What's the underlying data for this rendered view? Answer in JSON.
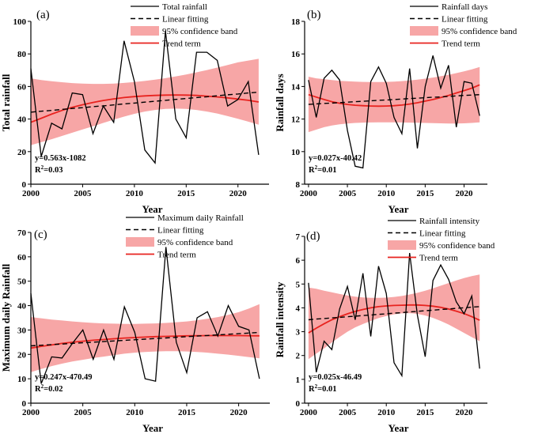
{
  "figure": {
    "colors": {
      "obs": "#000000",
      "trend": "#e8231f",
      "band": "#f7a6a6",
      "fit": "#000000"
    }
  },
  "chart_data": [
    {
      "type": "line",
      "panel_label": "(a)",
      "xlabel": "Year",
      "ylabel": "Total rainfall",
      "xlim": [
        2000,
        2023
      ],
      "ylim": [
        0,
        100
      ],
      "xticks": [
        "2000",
        "2005",
        "2010",
        "2015",
        "2020"
      ],
      "yticks": [
        "0",
        "20",
        "40",
        "60",
        "80",
        "100"
      ],
      "legend": [
        "Total rainfall",
        "Linear fitting",
        "95% confidence band",
        "Trend term"
      ],
      "equation": "y=0.563x-1082",
      "r2_label": "R",
      "r2_value": "=0.03",
      "x": [
        2000,
        2001,
        2002,
        2003,
        2004,
        2005,
        2006,
        2007,
        2008,
        2009,
        2010,
        2011,
        2012,
        2013,
        2014,
        2015,
        2016,
        2017,
        2018,
        2019,
        2020,
        2021,
        2022
      ],
      "series": [
        {
          "name": "Total rainfall",
          "values": [
            71,
            17,
            37.5,
            34,
            56,
            55,
            31,
            48,
            38,
            88,
            63,
            21,
            13,
            94,
            40,
            28.5,
            81,
            81,
            76,
            48,
            52,
            63,
            18
          ]
        },
        {
          "name": "Linear fitting",
          "values": [
            44.2,
            44.8,
            45.3,
            45.9,
            46.5,
            47.0,
            47.6,
            48.1,
            48.7,
            49.3,
            49.8,
            50.4,
            50.9,
            51.5,
            52.1,
            52.6,
            53.2,
            53.7,
            54.3,
            54.9,
            55.4,
            56.0,
            56.5
          ]
        },
        {
          "name": "Trend term",
          "values": [
            38,
            40.5,
            43,
            45.3,
            47.2,
            48.8,
            50.2,
            51.4,
            52.4,
            53.2,
            53.8,
            54.2,
            54.5,
            54.7,
            54.8,
            54.7,
            54.5,
            54.1,
            53.6,
            53.0,
            52.3,
            51.5,
            50.5
          ]
        },
        {
          "name": "95% confidence band upper",
          "values": [
            65,
            64,
            63.2,
            62.6,
            62.1,
            61.8,
            61.6,
            61.6,
            61.8,
            62.2,
            62.7,
            63.4,
            64.2,
            65.1,
            66.2,
            67.4,
            68.7,
            70.1,
            71.6,
            73.2,
            74.8,
            75.9,
            77
          ]
        },
        {
          "name": "95% confidence band lower",
          "values": [
            24,
            25.8,
            27.6,
            29.6,
            31.6,
            33.6,
            35.6,
            37.6,
            39.6,
            41.5,
            43.2,
            44.6,
            45.6,
            46.2,
            46.4,
            46.2,
            45.6,
            44.6,
            43.4,
            41.8,
            40.2,
            38.4,
            36.5
          ]
        }
      ]
    },
    {
      "type": "line",
      "panel_label": "(b)",
      "xlabel": "Year",
      "ylabel": "Rainfall days",
      "xlim": [
        1999.5,
        2023
      ],
      "ylim": [
        8,
        18
      ],
      "xticks": [
        "2000",
        "2005",
        "2010",
        "2015",
        "2020"
      ],
      "yticks": [
        "8",
        "10",
        "12",
        "14",
        "16",
        "18"
      ],
      "legend": [
        "Rainfall days",
        "Linear fitting",
        "95% confidence band",
        "Trend term"
      ],
      "equation": "y=0.027x-40.42",
      "r2_label": "R",
      "r2_value": "=0.01",
      "x": [
        2000,
        2001,
        2002,
        2003,
        2004,
        2005,
        2006,
        2007,
        2008,
        2009,
        2010,
        2011,
        2012,
        2013,
        2014,
        2015,
        2016,
        2017,
        2018,
        2019,
        2020,
        2021,
        2022
      ],
      "series": [
        {
          "name": "Rainfall days",
          "values": [
            14.4,
            12.1,
            14.5,
            15.0,
            14.4,
            11.3,
            9.1,
            9.0,
            14.3,
            15.2,
            14.2,
            12.1,
            11.1,
            15.1,
            10.2,
            14.0,
            15.9,
            13.9,
            15.3,
            11.5,
            14.3,
            14.2,
            12.2
          ]
        },
        {
          "name": "Linear fitting",
          "values": [
            12.9,
            12.93,
            12.96,
            12.98,
            13.01,
            13.04,
            13.07,
            13.09,
            13.12,
            13.15,
            13.17,
            13.2,
            13.23,
            13.26,
            13.28,
            13.31,
            13.34,
            13.36,
            13.39,
            13.42,
            13.45,
            13.47,
            13.5
          ]
        },
        {
          "name": "Trend term",
          "values": [
            13.5,
            13.35,
            13.2,
            13.07,
            12.97,
            12.9,
            12.85,
            12.82,
            12.8,
            12.79,
            12.8,
            12.82,
            12.86,
            12.92,
            13.0,
            13.1,
            13.2,
            13.32,
            13.45,
            13.6,
            13.75,
            13.9,
            14.1
          ]
        },
        {
          "name": "95% confidence band upper",
          "values": [
            14.6,
            14.5,
            14.45,
            14.4,
            14.35,
            14.32,
            14.3,
            14.28,
            14.27,
            14.27,
            14.28,
            14.3,
            14.33,
            14.37,
            14.42,
            14.48,
            14.55,
            14.63,
            14.72,
            14.82,
            14.93,
            15.05,
            15.2
          ]
        },
        {
          "name": "95% confidence band lower",
          "values": [
            11.2,
            11.35,
            11.5,
            11.6,
            11.68,
            11.73,
            11.76,
            11.78,
            11.79,
            11.8,
            11.8,
            11.8,
            11.79,
            11.78,
            11.77,
            11.76,
            11.75,
            11.74,
            11.73,
            11.73,
            11.74,
            11.76,
            11.8
          ]
        }
      ]
    },
    {
      "type": "line",
      "panel_label": "(c)",
      "xlabel": "Year",
      "ylabel": "Maximum daily Rainfall",
      "xlim": [
        2000,
        2023
      ],
      "ylim": [
        0,
        70
      ],
      "xticks": [
        "2000",
        "2005",
        "2010",
        "2015",
        "2020"
      ],
      "yticks": [
        "0",
        "10",
        "20",
        "30",
        "40",
        "50",
        "60",
        "70"
      ],
      "legend": [
        "Maximum daily Rainfall",
        "Linear fitting",
        "95% confidence band",
        "Trend term"
      ],
      "equation": "y=0.247x-470.49",
      "r2_label": "R",
      "r2_value": "=0.02",
      "x": [
        2000,
        2001,
        2002,
        2003,
        2004,
        2005,
        2006,
        2007,
        2008,
        2009,
        2010,
        2011,
        2012,
        2013,
        2014,
        2015,
        2016,
        2017,
        2018,
        2019,
        2020,
        2021,
        2022
      ],
      "series": [
        {
          "name": "Maximum daily Rainfall",
          "values": [
            45,
            8,
            19,
            18.5,
            24.5,
            30,
            18,
            30,
            18,
            39.5,
            29,
            10,
            9,
            64,
            25,
            12.5,
            35,
            37.5,
            27.5,
            40,
            31.5,
            30,
            10
          ]
        },
        {
          "name": "Linear fitting",
          "values": [
            23.5,
            23.75,
            24.0,
            24.25,
            24.5,
            24.75,
            25.0,
            25.25,
            25.5,
            25.75,
            26.0,
            26.25,
            26.5,
            26.75,
            27.0,
            27.25,
            27.5,
            27.75,
            28.0,
            28.25,
            28.5,
            28.75,
            29.0
          ]
        },
        {
          "name": "Trend term",
          "values": [
            22.6,
            23.3,
            23.9,
            24.5,
            25.0,
            25.4,
            25.8,
            26.1,
            26.4,
            26.7,
            26.9,
            27.1,
            27.3,
            27.4,
            27.5,
            27.6,
            27.65,
            27.7,
            27.7,
            27.7,
            27.7,
            27.65,
            27.6
          ]
        },
        {
          "name": "95% confidence band upper",
          "values": [
            35.3,
            34.8,
            34.3,
            33.9,
            33.5,
            33.2,
            32.9,
            32.7,
            32.6,
            32.5,
            32.5,
            32.6,
            32.7,
            32.9,
            33.2,
            33.5,
            34.0,
            34.6,
            35.3,
            36.2,
            37.3,
            38.8,
            40.6
          ]
        },
        {
          "name": "95% confidence band lower",
          "values": [
            12.7,
            14.0,
            15.2,
            16.2,
            17.1,
            17.8,
            18.5,
            19.1,
            19.7,
            20.3,
            20.7,
            21.0,
            21.2,
            21.3,
            21.3,
            21.2,
            21.0,
            20.7,
            20.3,
            19.9,
            19.4,
            18.9,
            18.4
          ]
        }
      ]
    },
    {
      "type": "line",
      "panel_label": "(d)",
      "xlabel": "Year",
      "ylabel": "Rainfall intensity",
      "xlim": [
        1999.5,
        2023
      ],
      "ylim": [
        0,
        7
      ],
      "xticks": [
        "2000",
        "2005",
        "2010",
        "2015",
        "2020"
      ],
      "yticks": [
        "0",
        "1",
        "2",
        "3",
        "4",
        "5",
        "6",
        "7"
      ],
      "legend": [
        "Rainfall intensity",
        "Linear fitting",
        "95% confidence band",
        "Trend term"
      ],
      "equation": "y=0.025x-46.49",
      "r2_label": "R",
      "r2_value": "=0.01",
      "x": [
        2000,
        2001,
        2002,
        2003,
        2004,
        2005,
        2006,
        2007,
        2008,
        2009,
        2010,
        2011,
        2012,
        2013,
        2014,
        2015,
        2016,
        2017,
        2018,
        2019,
        2020,
        2021,
        2022
      ],
      "series": [
        {
          "name": "Rainfall intensity",
          "values": [
            5.05,
            1.3,
            2.6,
            2.25,
            3.95,
            4.9,
            3.5,
            5.45,
            2.8,
            5.75,
            4.6,
            1.7,
            1.15,
            6.3,
            3.7,
            1.95,
            5.15,
            5.8,
            5.2,
            4.25,
            3.75,
            4.5,
            1.45
          ]
        },
        {
          "name": "Linear fitting",
          "values": [
            3.5,
            3.53,
            3.55,
            3.58,
            3.6,
            3.63,
            3.65,
            3.68,
            3.7,
            3.73,
            3.75,
            3.78,
            3.8,
            3.83,
            3.85,
            3.88,
            3.9,
            3.93,
            3.95,
            3.98,
            4.0,
            4.03,
            4.05
          ]
        },
        {
          "name": "Trend term",
          "values": [
            2.95,
            3.15,
            3.33,
            3.5,
            3.63,
            3.75,
            3.85,
            3.93,
            4.0,
            4.05,
            4.08,
            4.1,
            4.11,
            4.12,
            4.12,
            4.1,
            4.07,
            4.02,
            3.95,
            3.86,
            3.76,
            3.63,
            3.48
          ]
        },
        {
          "name": "95% confidence band upper",
          "values": [
            4.85,
            4.8,
            4.72,
            4.65,
            4.58,
            4.52,
            4.47,
            4.44,
            4.42,
            4.42,
            4.43,
            4.46,
            4.5,
            4.56,
            4.63,
            4.72,
            4.82,
            4.93,
            5.04,
            5.15,
            5.25,
            5.33,
            5.4
          ]
        },
        {
          "name": "95% confidence band lower",
          "values": [
            1.85,
            2.08,
            2.3,
            2.55,
            2.78,
            3.0,
            3.18,
            3.32,
            3.45,
            3.57,
            3.66,
            3.73,
            3.77,
            3.78,
            3.75,
            3.68,
            3.58,
            3.45,
            3.3,
            3.13,
            2.95,
            2.77,
            2.6
          ]
        }
      ]
    }
  ]
}
